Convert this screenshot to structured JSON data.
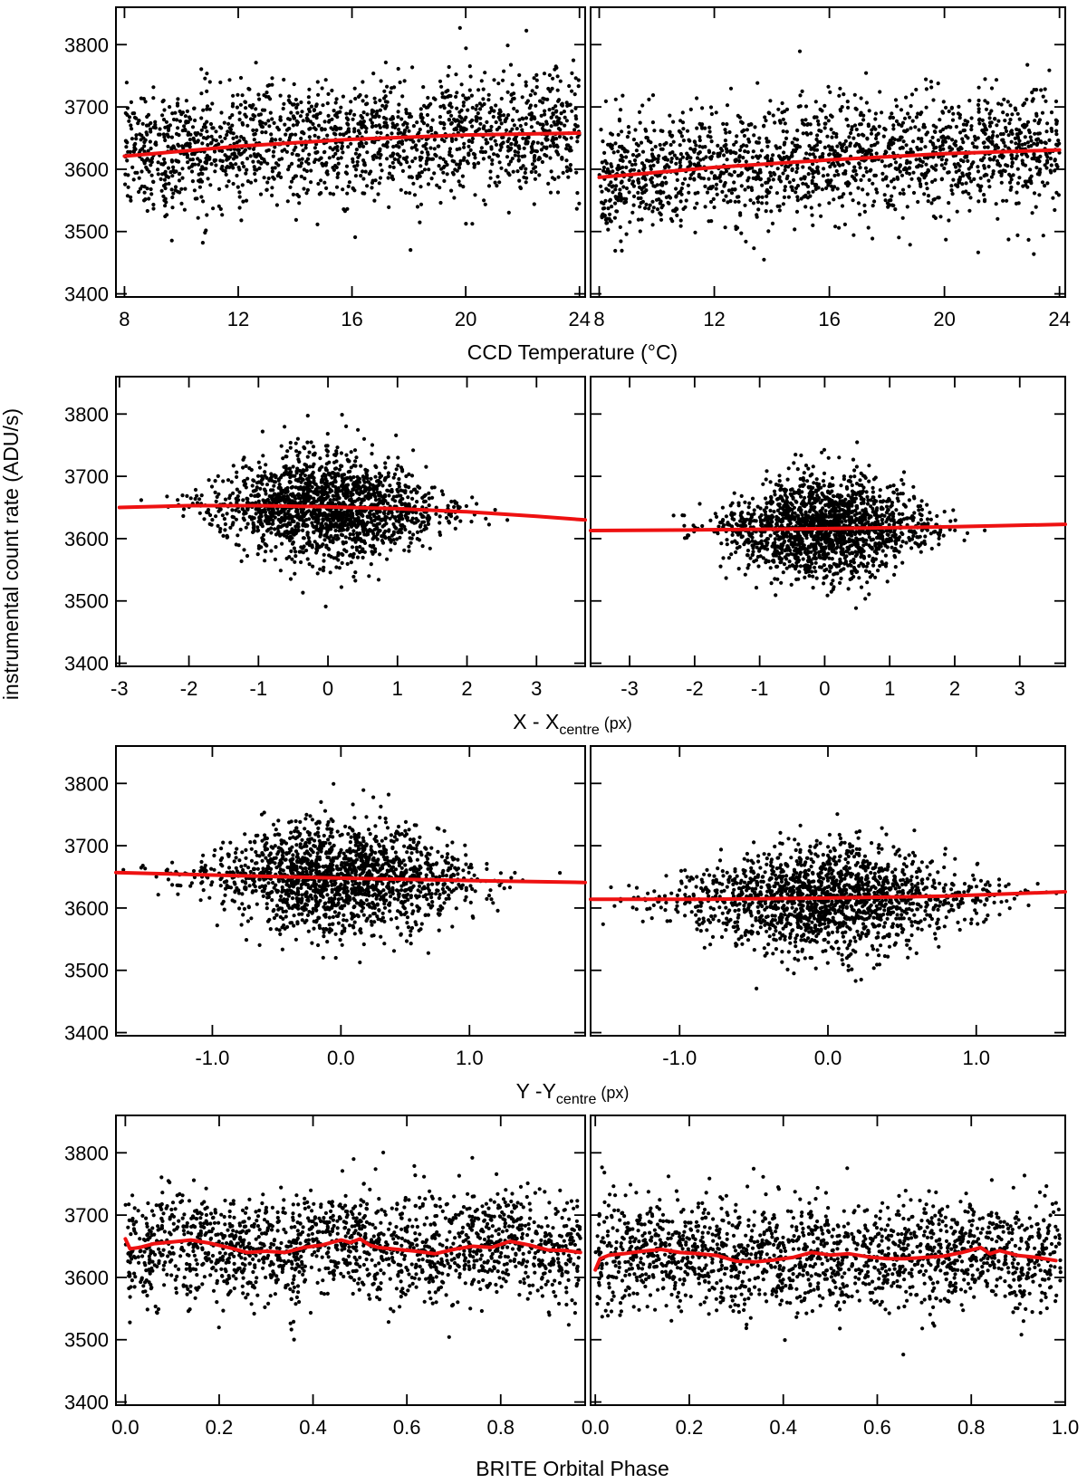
{
  "figure": {
    "ylabel": "instrumental count rate (ADU/s)",
    "rows": [
      {
        "xlabel": "CCD Temperature (°C)"
      },
      {
        "xlabel_main": "X - X",
        "xlabel_sub": "centre",
        "xlabel_unit": " (px)"
      },
      {
        "xlabel_main": "Y -Y",
        "xlabel_sub": "centre",
        "xlabel_unit": " (px)"
      },
      {
        "xlabel": "BRITE Orbital Phase"
      }
    ]
  },
  "chart_data": [
    {
      "type": "scatter",
      "id": "temp-left",
      "xlim": [
        7.7,
        24.2
      ],
      "ylim": [
        3395,
        3860
      ],
      "xticks": [
        8,
        12,
        16,
        20,
        24
      ],
      "xtick_labels": [
        "8",
        "12",
        "16",
        "20",
        "24"
      ],
      "yticks": [
        3400,
        3500,
        3600,
        3700,
        3800
      ],
      "ytick_labels": [
        "3400",
        "3500",
        "3600",
        "3700",
        "3800"
      ],
      "scatter": {
        "model": "uniform",
        "x_range": [
          8.0,
          24.0
        ],
        "y_center": 3652,
        "y_sd": 48,
        "n": 1700,
        "seed": 11
      },
      "fit": {
        "x": [
          8,
          12,
          16,
          20,
          24
        ],
        "y": [
          3621,
          3637,
          3648,
          3655,
          3658
        ]
      }
    },
    {
      "type": "scatter",
      "id": "temp-right",
      "xlim": [
        7.7,
        24.2
      ],
      "ylim": [
        3395,
        3860
      ],
      "xticks": [
        8,
        12,
        16,
        20,
        24
      ],
      "xtick_labels": [
        "8",
        "12",
        "16",
        "20",
        "24"
      ],
      "yticks": [
        3400,
        3500,
        3600,
        3700,
        3800
      ],
      "ytick_labels": [
        "",
        "",
        "",
        "",
        ""
      ],
      "scatter": {
        "model": "uniform",
        "x_range": [
          8.0,
          24.0
        ],
        "y_center": 3620,
        "y_sd": 47,
        "n": 1700,
        "seed": 23
      },
      "fit": {
        "x": [
          8,
          12,
          16,
          20,
          24
        ],
        "y": [
          3587,
          3603,
          3615,
          3625,
          3631
        ]
      }
    },
    {
      "type": "scatter",
      "id": "x-left",
      "xlim": [
        -3.05,
        3.7
      ],
      "ylim": [
        3395,
        3860
      ],
      "xticks": [
        -3,
        -2,
        -1,
        0,
        1,
        2,
        3
      ],
      "xtick_labels": [
        "-3",
        "-2",
        "-1",
        "0",
        "1",
        "2",
        "3"
      ],
      "yticks": [
        3400,
        3500,
        3600,
        3700,
        3800
      ],
      "ytick_labels": [
        "3400",
        "3500",
        "3600",
        "3700",
        "3800"
      ],
      "scatter": {
        "model": "gaussian",
        "x_center": 0.0,
        "x_sd": 0.8,
        "x_range": [
          -2.7,
          3.4
        ],
        "y_center": 3650,
        "y_sd": 44,
        "n": 1700,
        "seed": 37
      },
      "fit": {
        "x": [
          -3,
          -2,
          -1,
          0,
          1,
          2,
          3,
          3.7
        ],
        "y": [
          3650,
          3653,
          3653,
          3651,
          3648,
          3643,
          3636,
          3630
        ]
      }
    },
    {
      "type": "scatter",
      "id": "x-right",
      "xlim": [
        -3.6,
        3.7
      ],
      "ylim": [
        3395,
        3860
      ],
      "xticks": [
        -3,
        -2,
        -1,
        0,
        1,
        2,
        3
      ],
      "xtick_labels": [
        "-3",
        "-2",
        "-1",
        "0",
        "1",
        "2",
        "3"
      ],
      "yticks": [
        3400,
        3500,
        3600,
        3700,
        3800
      ],
      "ytick_labels": [
        "",
        "",
        "",
        "",
        ""
      ],
      "scatter": {
        "model": "gaussian",
        "x_center": 0.0,
        "x_sd": 0.75,
        "x_range": [
          -3.3,
          3.5
        ],
        "y_center": 3618,
        "y_sd": 43,
        "n": 1700,
        "seed": 41
      },
      "fit": {
        "x": [
          -3.6,
          -2,
          0,
          2,
          3.7
        ],
        "y": [
          3613,
          3614,
          3616,
          3619,
          3623
        ]
      }
    },
    {
      "type": "scatter",
      "id": "y-left",
      "xlim": [
        -1.75,
        1.9
      ],
      "ylim": [
        3395,
        3860
      ],
      "xticks": [
        -1.0,
        0.0,
        1.0
      ],
      "xtick_labels": [
        "-1.0",
        "0.0",
        "1.0"
      ],
      "yticks": [
        3400,
        3500,
        3600,
        3700,
        3800
      ],
      "ytick_labels": [
        "3400",
        "3500",
        "3600",
        "3700",
        "3800"
      ],
      "scatter": {
        "model": "gaussian",
        "x_center": 0.0,
        "x_sd": 0.5,
        "x_range": [
          -1.7,
          1.75
        ],
        "y_center": 3648,
        "y_sd": 44,
        "n": 1700,
        "seed": 53
      },
      "fit": {
        "x": [
          -1.75,
          -1.0,
          0.0,
          1.0,
          1.9
        ],
        "y": [
          3657,
          3653,
          3648,
          3644,
          3641
        ]
      }
    },
    {
      "type": "scatter",
      "id": "y-right",
      "xlim": [
        -1.6,
        1.6
      ],
      "ylim": [
        3395,
        3860
      ],
      "xticks": [
        -1.0,
        0.0,
        1.0
      ],
      "xtick_labels": [
        "-1.0",
        "0.0",
        "1.0"
      ],
      "yticks": [
        3400,
        3500,
        3600,
        3700,
        3800
      ],
      "ytick_labels": [
        "",
        "",
        "",
        "",
        ""
      ],
      "scatter": {
        "model": "gaussian",
        "x_center": 0.0,
        "x_sd": 0.5,
        "x_range": [
          -1.55,
          1.55
        ],
        "y_center": 3616,
        "y_sd": 43,
        "n": 1700,
        "seed": 67
      },
      "fit": {
        "x": [
          -1.6,
          -0.8,
          0.0,
          0.8,
          1.6
        ],
        "y": [
          3614,
          3614,
          3616,
          3619,
          3626
        ]
      }
    },
    {
      "type": "scatter",
      "id": "phase-left",
      "xlim": [
        -0.02,
        0.98
      ],
      "ylim": [
        3395,
        3860
      ],
      "xticks": [
        0.0,
        0.2,
        0.4,
        0.6,
        0.8
      ],
      "xtick_labels": [
        "0.0",
        "0.2",
        "0.4",
        "0.6",
        "0.8"
      ],
      "yticks": [
        3400,
        3500,
        3600,
        3700,
        3800
      ],
      "ytick_labels": [
        "3400",
        "3500",
        "3600",
        "3700",
        "3800"
      ],
      "scatter": {
        "model": "uniform",
        "x_range": [
          0.0,
          0.97
        ],
        "y_center": 3648,
        "y_sd": 45,
        "n": 1700,
        "seed": 79
      },
      "fit": {
        "x": [
          0.0,
          0.01,
          0.03,
          0.06,
          0.1,
          0.14,
          0.18,
          0.22,
          0.26,
          0.3,
          0.34,
          0.38,
          0.42,
          0.46,
          0.48,
          0.5,
          0.52,
          0.54,
          0.58,
          0.62,
          0.66,
          0.7,
          0.74,
          0.78,
          0.82,
          0.86,
          0.9,
          0.94,
          0.97
        ],
        "y": [
          3662,
          3646,
          3648,
          3654,
          3657,
          3660,
          3655,
          3648,
          3640,
          3642,
          3640,
          3648,
          3652,
          3660,
          3656,
          3662,
          3652,
          3648,
          3645,
          3642,
          3638,
          3645,
          3650,
          3648,
          3658,
          3652,
          3644,
          3643,
          3640
        ]
      }
    },
    {
      "type": "scatter",
      "id": "phase-right",
      "xlim": [
        -0.01,
        1.0
      ],
      "ylim": [
        3395,
        3860
      ],
      "xticks": [
        0.0,
        0.2,
        0.4,
        0.6,
        0.8,
        1.0
      ],
      "xtick_labels": [
        "0.0",
        "0.2",
        "0.4",
        "0.6",
        "0.8",
        "1.0"
      ],
      "yticks": [
        3400,
        3500,
        3600,
        3700,
        3800
      ],
      "ytick_labels": [
        "",
        "",
        "",
        "",
        ""
      ],
      "scatter": {
        "model": "uniform",
        "x_range": [
          0.0,
          0.99
        ],
        "y_center": 3633,
        "y_sd": 44,
        "n": 1700,
        "seed": 97
      },
      "fit": {
        "x": [
          0.0,
          0.01,
          0.03,
          0.06,
          0.1,
          0.14,
          0.18,
          0.22,
          0.26,
          0.3,
          0.34,
          0.38,
          0.42,
          0.46,
          0.5,
          0.54,
          0.58,
          0.62,
          0.66,
          0.7,
          0.74,
          0.78,
          0.82,
          0.84,
          0.86,
          0.9,
          0.94,
          0.98
        ],
        "y": [
          3612,
          3630,
          3636,
          3638,
          3642,
          3645,
          3640,
          3638,
          3635,
          3626,
          3625,
          3628,
          3632,
          3640,
          3636,
          3638,
          3633,
          3630,
          3630,
          3632,
          3634,
          3640,
          3648,
          3638,
          3643,
          3635,
          3632,
          3627
        ]
      }
    }
  ]
}
